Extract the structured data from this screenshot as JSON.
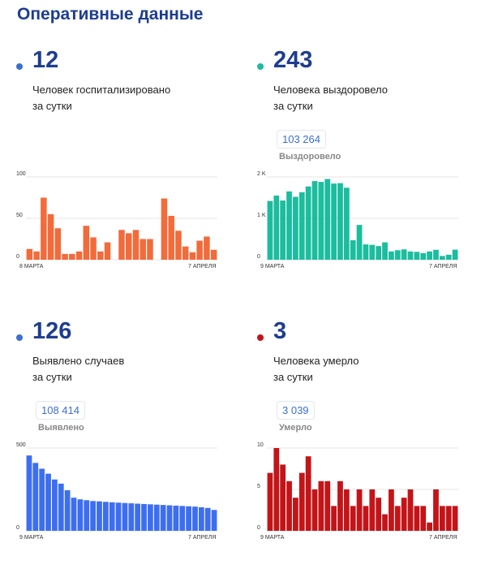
{
  "page_title": "Оперативные данные",
  "panels": [
    {
      "id": "hospitalized",
      "color": "#f26b3a",
      "dot_color": "#3b6fd0",
      "big_number": "12",
      "desc_line1": "Человек госпитализировано",
      "desc_line2": "за сутки",
      "total": "",
      "total_label": ""
    },
    {
      "id": "recovered",
      "color": "#1bbd9e",
      "dot_color": "#1bbd9e",
      "big_number": "243",
      "desc_line1": "Человека выздоровело",
      "desc_line2": "за сутки",
      "total": "103 264",
      "total_label": "Выздоровело"
    },
    {
      "id": "detected",
      "color": "#3d6ef0",
      "dot_color": "#3b6fd0",
      "big_number": "126",
      "desc_line1": "Выявлено случаев",
      "desc_line2": "за сутки",
      "total": "108 414",
      "total_label": "Выявлено"
    },
    {
      "id": "died",
      "color": "#c41418",
      "dot_color": "#c41418",
      "big_number": "3",
      "desc_line1": "Человека умерло",
      "desc_line2": "за сутки",
      "total": "3 039",
      "total_label": "Умерло"
    }
  ],
  "chart_data": [
    {
      "type": "bar",
      "title": "",
      "ylim": [
        0,
        100
      ],
      "y_ticks": [
        "100",
        "50",
        "0"
      ],
      "x_start_label": "8 МАРТА",
      "x_end_label": "7 АПРЕЛЯ",
      "values": [
        13,
        10,
        75,
        55,
        38,
        7,
        7,
        10,
        41,
        27,
        10,
        21,
        0,
        36,
        32,
        36,
        25,
        25,
        0,
        74,
        53,
        35,
        16,
        9,
        23,
        28,
        12
      ],
      "gaps": [
        12,
        18
      ]
    },
    {
      "type": "bar",
      "title": "",
      "ylim": [
        0,
        2000
      ],
      "y_ticks": [
        "2 K",
        "1 K",
        "0"
      ],
      "x_start_label": "9 МАРТА",
      "x_end_label": "7 АПРЕЛЯ",
      "values": [
        1420,
        1550,
        1430,
        1650,
        1520,
        1630,
        1770,
        1900,
        1880,
        1950,
        1840,
        1850,
        1740,
        470,
        840,
        370,
        360,
        330,
        420,
        200,
        230,
        250,
        200,
        190,
        160,
        200,
        240,
        90,
        120,
        243
      ]
    },
    {
      "type": "bar",
      "title": "",
      "ylim": [
        0,
        500
      ],
      "y_ticks": [
        "500",
        "0"
      ],
      "x_start_label": "9 МАРТА",
      "x_end_label": "7 АПРЕЛЯ",
      "values": [
        455,
        410,
        375,
        345,
        310,
        285,
        245,
        200,
        190,
        185,
        180,
        178,
        175,
        172,
        170,
        168,
        166,
        164,
        162,
        160,
        158,
        156,
        154,
        152,
        150,
        148,
        146,
        142,
        138,
        126
      ]
    },
    {
      "type": "bar",
      "title": "",
      "ylim": [
        0,
        10
      ],
      "y_ticks": [
        "10",
        "5",
        "0"
      ],
      "x_start_label": "9 МАРТА",
      "x_end_label": "7 АПРЕЛЯ",
      "values": [
        7,
        10,
        8,
        6,
        4,
        7,
        9,
        5,
        6,
        6,
        3,
        6,
        5,
        3,
        5,
        3,
        5,
        4,
        2,
        5,
        3,
        4,
        5,
        3,
        3,
        1,
        5,
        3,
        3,
        3
      ]
    }
  ]
}
